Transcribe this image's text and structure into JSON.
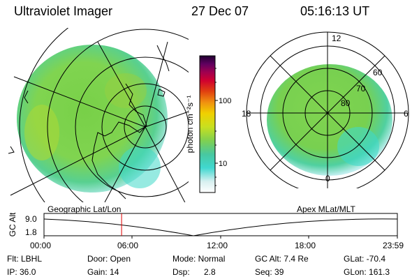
{
  "header": {
    "instrument": "Ultraviolet Imager",
    "date": "27 Dec 07",
    "time": "05:16:13 UT"
  },
  "colorbar": {
    "unit_label": "photon cm⁻²s⁻¹",
    "tick_labels": [
      "100",
      "10"
    ],
    "colors": [
      "#ffffff",
      "#d8f0f0",
      "#40d8d0",
      "#48c8a0",
      "#80d050",
      "#c8e020",
      "#f0d000",
      "#f09010",
      "#e04010",
      "#d00030",
      "#a00050",
      "#600060",
      "#200030"
    ]
  },
  "left_map": {
    "caption": "Geographic Lat/Lon"
  },
  "right_map": {
    "caption": "Apex MLat/MLT",
    "mlt_labels": {
      "top": "12",
      "left": "18",
      "right": "6",
      "bottom": "0"
    },
    "lat_labels": [
      "60",
      "70",
      "80"
    ]
  },
  "altitude_plot": {
    "ylabel": "GC Alt",
    "y_ticks": [
      "9.0",
      "1.8"
    ],
    "x_ticks": [
      "00:00",
      "06:00",
      "12:00",
      "18:00",
      "23:59"
    ],
    "current_time_marker_hours": 5.27,
    "marker_color": "#e00000"
  },
  "info": {
    "flt": "Flt: LBHL",
    "ip": "IP: 36.0",
    "door": "Door: Open",
    "gain": "Gain: 14",
    "mode": "Mode: Normal",
    "dsp_label": "Dsp:",
    "dsp_value": "2.8",
    "gc_alt": "GC Alt: 7.4 Re",
    "seq": "Seq: 39",
    "glat": "GLat: -70.4",
    "glon": "GLon: 161.3"
  }
}
